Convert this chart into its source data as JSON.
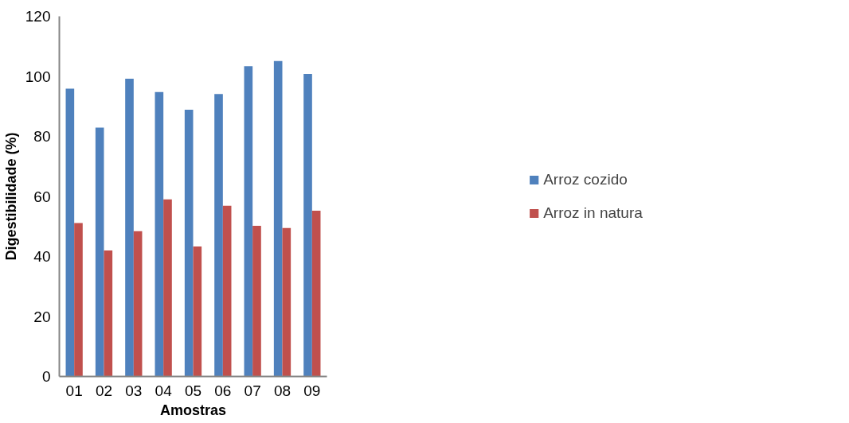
{
  "chart_data": {
    "type": "bar",
    "xlabel": "Amostras",
    "ylabel": "Digestibilidade (%)",
    "categories": [
      "01",
      "02",
      "03",
      "04",
      "05",
      "06",
      "07",
      "08",
      "09"
    ],
    "series": [
      {
        "name": "Arroz cozido",
        "color": "#4f81bd",
        "values": [
          95.9,
          82.9,
          99.2,
          94.8,
          88.9,
          94.1,
          103.4,
          105.1,
          100.8
        ]
      },
      {
        "name": "Arroz in natura",
        "color": "#c0504d",
        "values": [
          51.1,
          42.0,
          48.4,
          59.0,
          43.3,
          56.9,
          50.2,
          49.5,
          55.2
        ]
      }
    ],
    "ylim": [
      0,
      120
    ],
    "yticks": [
      0,
      20,
      40,
      60,
      80,
      100,
      120
    ],
    "grid": false,
    "legend": "right"
  }
}
